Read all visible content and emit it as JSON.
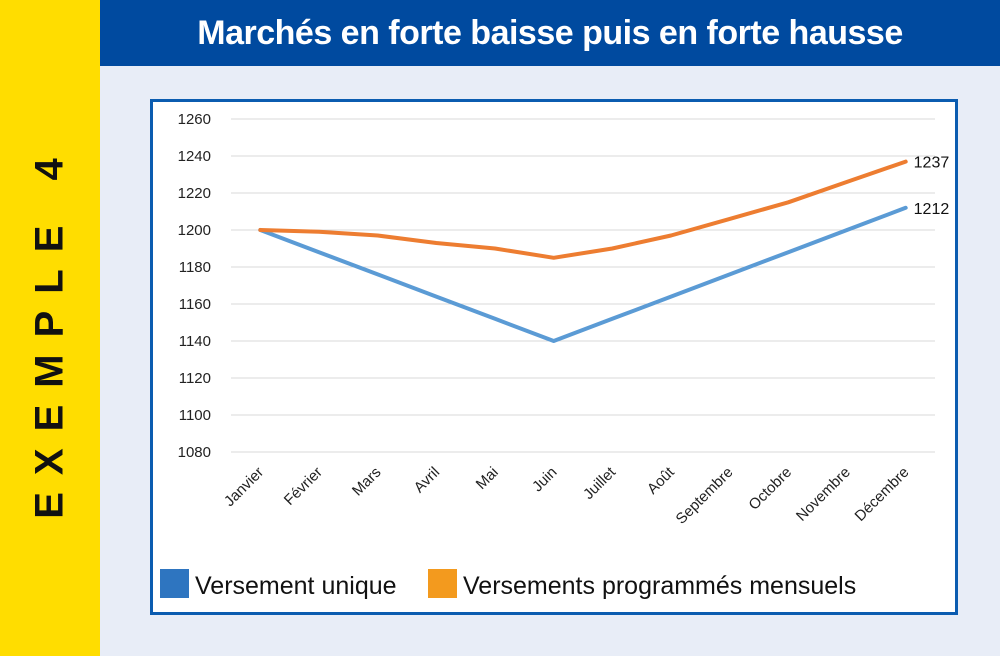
{
  "side_label": "EXEMPLE 4",
  "colors": {
    "band": "#ffdd00",
    "header": "#004a9f",
    "frame": "#0b5cb0",
    "background": "#e8edf7"
  },
  "chart_data": {
    "type": "line",
    "title": "Marchés en forte baisse puis en forte hausse",
    "xlabel": "",
    "ylabel": "",
    "categories": [
      "Janvier",
      "Février",
      "Mars",
      "Avril",
      "Mai",
      "Juin",
      "Juillet",
      "Août",
      "Septembre",
      "Octobre",
      "Novembre",
      "Décembre"
    ],
    "ylim": [
      1080,
      1260
    ],
    "yticks": [
      1080,
      1100,
      1120,
      1140,
      1160,
      1180,
      1200,
      1220,
      1240,
      1260
    ],
    "grid": true,
    "legend": "bottom",
    "series": [
      {
        "name": "Versement unique",
        "color": "#5b9bd5",
        "legend_color": "#2e75c0",
        "values": [
          1200,
          1188,
          1176,
          1164,
          1152,
          1140,
          1152,
          1164,
          1176,
          1188,
          1200,
          1212
        ],
        "end_label": "1212"
      },
      {
        "name": "Versements programmés mensuels",
        "color": "#ed7d31",
        "legend_color": "#f39a1e",
        "values": [
          1200,
          1199,
          1197,
          1193,
          1190,
          1185,
          1190,
          1197,
          1206,
          1215,
          1226,
          1237
        ],
        "end_label": "1237"
      }
    ]
  }
}
